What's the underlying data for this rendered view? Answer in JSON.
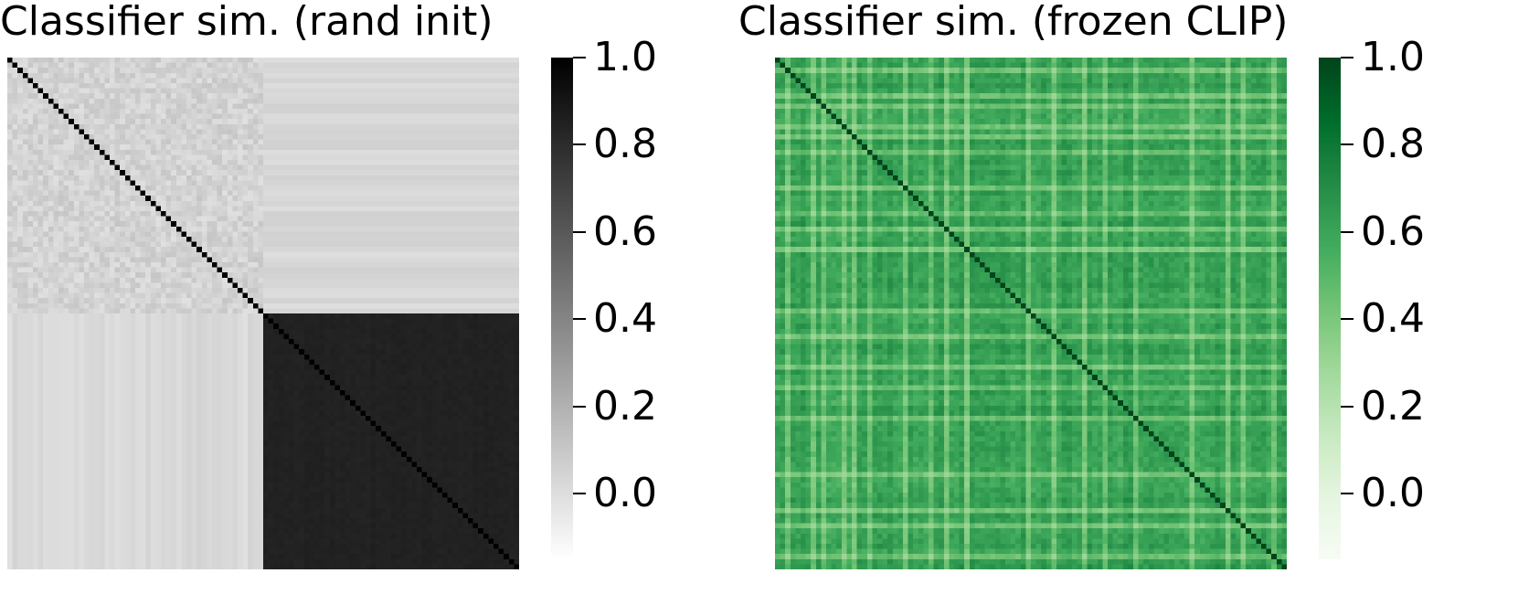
{
  "chart_data": [
    {
      "type": "heatmap",
      "title": "Classifier sim. (rand init)",
      "colormap": "Greys",
      "colorbar": {
        "range": [
          -0.15,
          1.0
        ],
        "ticks": [
          "0.0",
          "0.2",
          "0.4",
          "0.6",
          "0.8",
          "1.0"
        ]
      },
      "matrix_size": 100,
      "structure": {
        "diagonal": 1.0,
        "block_split": 50,
        "top_left_block_mean": 0.05,
        "top_right_block_mean": 0.03,
        "bottom_left_block_mean": 0.02,
        "bottom_right_block_mean": 0.85
      }
    },
    {
      "type": "heatmap",
      "title": "Classifier sim. (frozen CLIP)",
      "colormap": "Greens",
      "colorbar": {
        "range": [
          -0.15,
          1.0
        ],
        "ticks": [
          "0.0",
          "0.2",
          "0.4",
          "0.6",
          "0.8",
          "1.0"
        ]
      },
      "matrix_size": 100,
      "structure": {
        "diagonal": 1.0,
        "off_diagonal_mean": 0.62,
        "off_diagonal_min": 0.3
      }
    }
  ],
  "colors": {
    "greys_high": "#000000",
    "greys_low": "#ffffff",
    "greens_high": "#00441b",
    "greens_low": "#f7fcf5"
  }
}
